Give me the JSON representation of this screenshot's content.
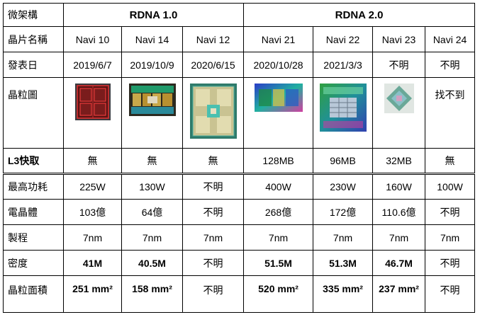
{
  "corner": "微架構",
  "groups": [
    "RDNA 1.0",
    "RDNA 2.0"
  ],
  "row_labels": {
    "chip": "晶片名稱",
    "date": "發表日",
    "die": "晶粒圖",
    "l3": "L3快取",
    "power": "最高功耗",
    "transistors": "電晶體",
    "process": "製程",
    "density": "密度",
    "area": "晶粒面積"
  },
  "chips": [
    {
      "name": "Navi 10",
      "date": "2019/6/7",
      "die_text": "",
      "l3": "無",
      "power": "225W",
      "transistors": "103億",
      "process": "7nm",
      "density": "41M",
      "area": "251 mm²"
    },
    {
      "name": "Navi 14",
      "date": "2019/10/9",
      "die_text": "",
      "l3": "無",
      "power": "130W",
      "transistors": "64億",
      "process": "7nm",
      "density": "40.5M",
      "area": "158 mm²"
    },
    {
      "name": "Navi 12",
      "date": "2020/6/15",
      "die_text": "",
      "l3": "無",
      "power": "不明",
      "transistors": "不明",
      "process": "7nm",
      "density": "不明",
      "area": "不明"
    },
    {
      "name": "Navi 21",
      "date": "2020/10/28",
      "die_text": "",
      "l3": "128MB",
      "power": "400W",
      "transistors": "268億",
      "process": "7nm",
      "density": "51.5M",
      "area": "520 mm²"
    },
    {
      "name": "Navi 22",
      "date": "2021/3/3",
      "die_text": "",
      "l3": "96MB",
      "power": "230W",
      "transistors": "172億",
      "process": "7nm",
      "density": "51.3M",
      "area": "335 mm²"
    },
    {
      "name": "Navi 23",
      "date": "不明",
      "die_text": "",
      "l3": "32MB",
      "power": "160W",
      "transistors": "110.6億",
      "process": "7nm",
      "density": "46.7M",
      "area": "237 mm²"
    },
    {
      "name": "Navi 24",
      "date": "不明",
      "die_text": "找不到",
      "l3": "無",
      "power": "100W",
      "transistors": "不明",
      "process": "7nm",
      "density": "不明",
      "area": "不明"
    }
  ]
}
